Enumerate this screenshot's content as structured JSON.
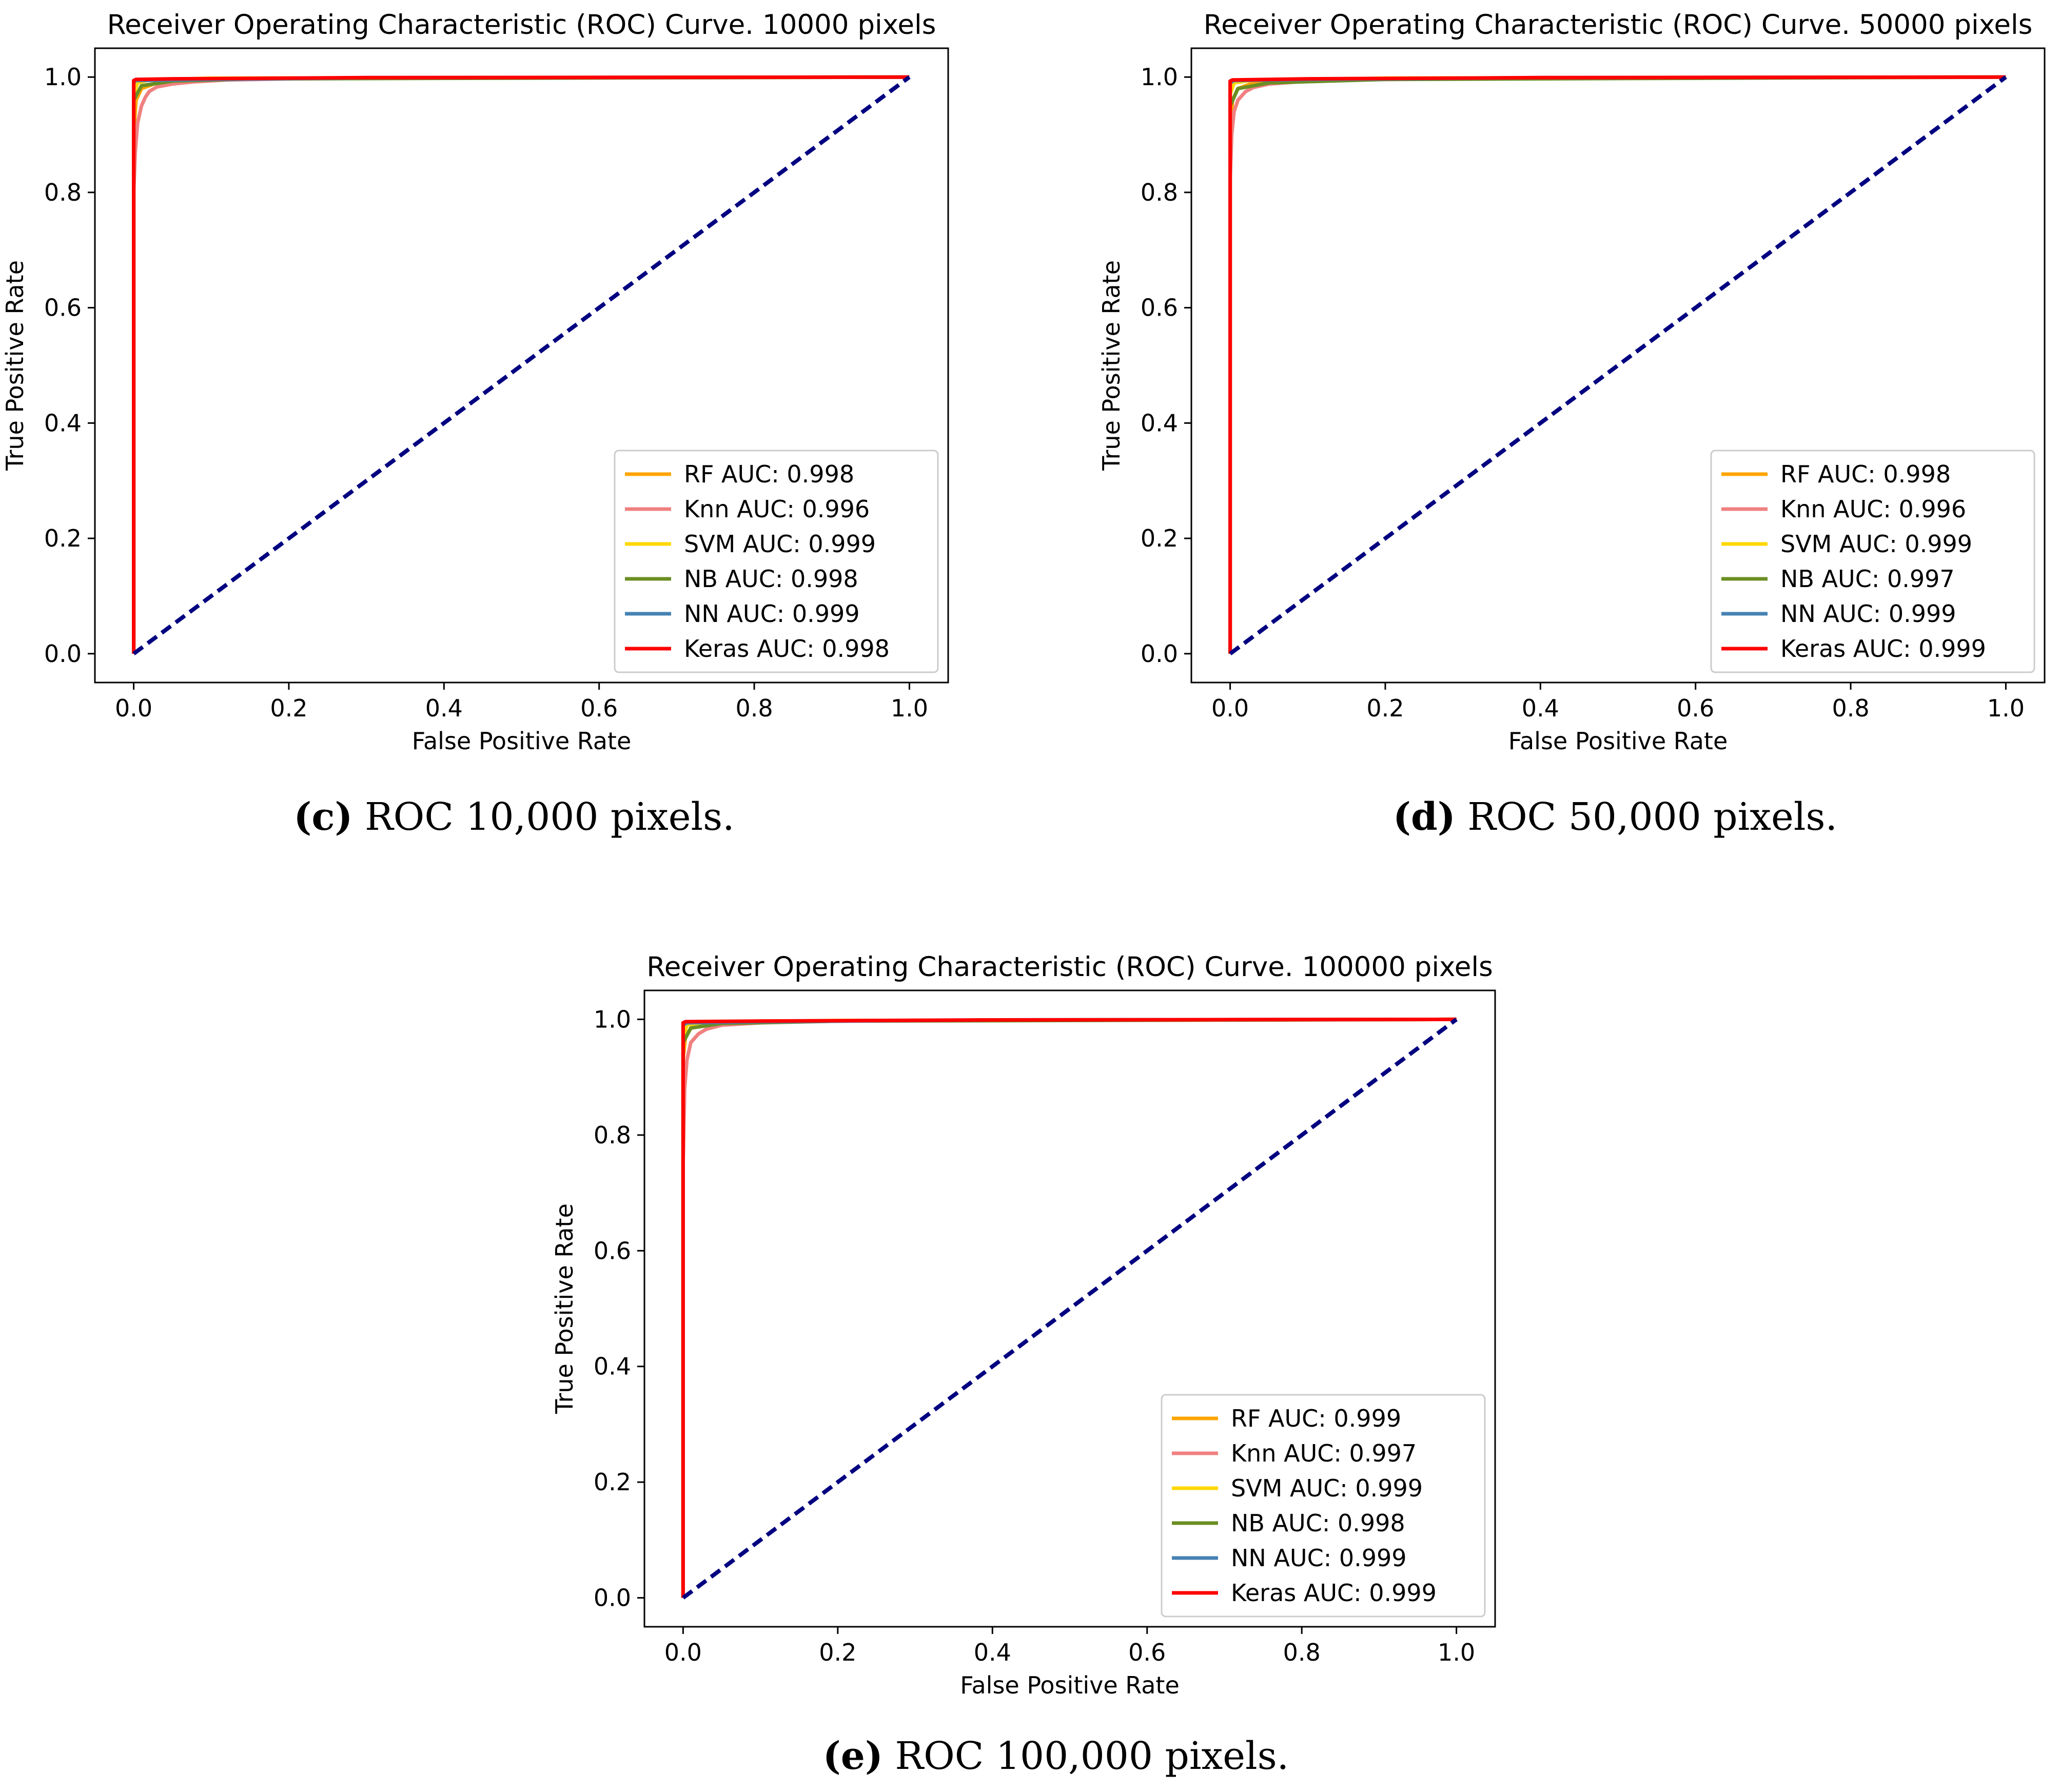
{
  "chart_data": [
    {
      "type": "line",
      "title": "Receiver Operating Characteristic (ROC) Curve. 10000 pixels",
      "xlabel": "False Positive Rate",
      "ylabel": "True Positive Rate",
      "xlim": [
        -0.05,
        1.05
      ],
      "ylim": [
        -0.05,
        1.05
      ],
      "xticks": [
        "0.0",
        "0.2",
        "0.4",
        "0.6",
        "0.8",
        "1.0"
      ],
      "yticks": [
        "0.0",
        "0.2",
        "0.4",
        "0.6",
        "0.8",
        "1.0"
      ],
      "grid": false,
      "legend_position": "lower-right",
      "caption": {
        "letter": "(c)",
        "text": " ROC 10,000 pixels."
      },
      "series": [
        {
          "name": "RF AUC: 0.998",
          "color": "#ffa500",
          "x": [
            0,
            0,
            0.003,
            0.01,
            0.03,
            0.06,
            0.1,
            0.2,
            1
          ],
          "y": [
            0,
            0.9,
            0.96,
            0.98,
            0.99,
            0.993,
            0.996,
            0.998,
            1
          ]
        },
        {
          "name": "Knn AUC: 0.996",
          "color": "#f08080",
          "x": [
            0,
            0,
            0.002,
            0.005,
            0.01,
            0.015,
            0.02,
            0.03,
            0.05,
            0.08,
            0.12,
            0.2,
            0.4,
            1
          ],
          "y": [
            0,
            0.8,
            0.87,
            0.92,
            0.95,
            0.965,
            0.975,
            0.983,
            0.988,
            0.992,
            0.995,
            0.997,
            0.999,
            1
          ]
        },
        {
          "name": "SVM AUC: 0.999",
          "color": "#ffd700",
          "x": [
            0,
            0,
            0.005,
            0.02,
            0.1,
            1
          ],
          "y": [
            0,
            0.97,
            0.99,
            0.995,
            0.998,
            1
          ]
        },
        {
          "name": "NB AUC: 0.998",
          "color": "#6b8e23",
          "x": [
            0,
            0,
            0.01,
            0.05,
            0.15,
            1
          ],
          "y": [
            0,
            0.96,
            0.985,
            0.993,
            0.997,
            1
          ]
        },
        {
          "name": "NN AUC: 0.999",
          "color": "#4682b4",
          "x": [
            0,
            0,
            0.002,
            0.1,
            0.3,
            1
          ],
          "y": [
            0,
            0.99,
            0.994,
            0.996,
            0.999,
            1
          ]
        },
        {
          "name": "Keras AUC: 0.998",
          "color": "#ff0000",
          "x": [
            0,
            0,
            0.003,
            0.05,
            0.3,
            1
          ],
          "y": [
            0,
            0.994,
            0.996,
            0.997,
            0.999,
            1
          ]
        },
        {
          "name": "",
          "color": "#000080",
          "dashed": true,
          "x": [
            0,
            1
          ],
          "y": [
            0,
            1
          ]
        }
      ]
    },
    {
      "type": "line",
      "title": "Receiver Operating Characteristic (ROC) Curve. 50000 pixels",
      "xlabel": "False Positive Rate",
      "ylabel": "True Positive Rate",
      "xlim": [
        -0.05,
        1.05
      ],
      "ylim": [
        -0.05,
        1.05
      ],
      "xticks": [
        "0.0",
        "0.2",
        "0.4",
        "0.6",
        "0.8",
        "1.0"
      ],
      "yticks": [
        "0.0",
        "0.2",
        "0.4",
        "0.6",
        "0.8",
        "1.0"
      ],
      "grid": false,
      "legend_position": "lower-right",
      "caption": {
        "letter": "(d)",
        "text": " ROC 50,000 pixels."
      },
      "series": [
        {
          "name": "RF AUC: 0.998",
          "color": "#ffa500",
          "x": [
            0,
            0,
            0.003,
            0.01,
            0.03,
            0.08,
            0.2,
            1
          ],
          "y": [
            0,
            0.9,
            0.96,
            0.98,
            0.99,
            0.994,
            0.998,
            1
          ]
        },
        {
          "name": "Knn AUC: 0.996",
          "color": "#f08080",
          "x": [
            0,
            0,
            0.002,
            0.005,
            0.01,
            0.02,
            0.03,
            0.05,
            0.1,
            0.2,
            0.5,
            1
          ],
          "y": [
            0,
            0.82,
            0.9,
            0.94,
            0.96,
            0.975,
            0.982,
            0.988,
            0.993,
            0.996,
            0.999,
            1
          ]
        },
        {
          "name": "SVM AUC: 0.999",
          "color": "#ffd700",
          "x": [
            0,
            0,
            0.005,
            0.03,
            0.2,
            1
          ],
          "y": [
            0,
            0.97,
            0.99,
            0.995,
            0.998,
            1
          ]
        },
        {
          "name": "NB AUC: 0.997",
          "color": "#6b8e23",
          "x": [
            0,
            0,
            0.01,
            0.05,
            0.2,
            1
          ],
          "y": [
            0,
            0.95,
            0.98,
            0.99,
            0.996,
            1
          ]
        },
        {
          "name": "NN AUC: 0.999",
          "color": "#4682b4",
          "x": [
            0,
            0,
            0.005,
            0.1,
            0.4,
            1
          ],
          "y": [
            0,
            0.99,
            0.994,
            0.996,
            0.999,
            1
          ]
        },
        {
          "name": "Keras AUC: 0.999",
          "color": "#ff0000",
          "x": [
            0,
            0,
            0.003,
            0.1,
            0.4,
            1
          ],
          "y": [
            0,
            0.993,
            0.995,
            0.997,
            0.999,
            1
          ]
        },
        {
          "name": "",
          "color": "#000080",
          "dashed": true,
          "x": [
            0,
            1
          ],
          "y": [
            0,
            1
          ]
        }
      ]
    },
    {
      "type": "line",
      "title": "Receiver Operating Characteristic (ROC) Curve. 100000 pixels",
      "xlabel": "False Positive Rate",
      "ylabel": "True Positive Rate",
      "xlim": [
        -0.05,
        1.05
      ],
      "ylim": [
        -0.05,
        1.05
      ],
      "xticks": [
        "0.0",
        "0.2",
        "0.4",
        "0.6",
        "0.8",
        "1.0"
      ],
      "yticks": [
        "0.0",
        "0.2",
        "0.4",
        "0.6",
        "0.8",
        "1.0"
      ],
      "grid": false,
      "legend_position": "lower-right",
      "caption": {
        "letter": "(e)",
        "text": " ROC 100,000 pixels."
      },
      "series": [
        {
          "name": "RF AUC: 0.999",
          "color": "#ffa500",
          "x": [
            0,
            0,
            0.003,
            0.01,
            0.03,
            0.1,
            1
          ],
          "y": [
            0,
            0.93,
            0.97,
            0.985,
            0.993,
            0.997,
            1
          ]
        },
        {
          "name": "Knn AUC: 0.997",
          "color": "#f08080",
          "x": [
            0,
            0,
            0.002,
            0.005,
            0.01,
            0.02,
            0.03,
            0.05,
            0.1,
            0.2,
            0.5,
            1
          ],
          "y": [
            0,
            0.75,
            0.88,
            0.93,
            0.96,
            0.975,
            0.983,
            0.99,
            0.994,
            0.997,
            0.999,
            1
          ]
        },
        {
          "name": "SVM AUC: 0.999",
          "color": "#ffd700",
          "x": [
            0,
            0,
            0.005,
            0.03,
            0.2,
            1
          ],
          "y": [
            0,
            0.97,
            0.99,
            0.995,
            0.998,
            1
          ]
        },
        {
          "name": "NB AUC: 0.998",
          "color": "#6b8e23",
          "x": [
            0,
            0,
            0.01,
            0.05,
            0.2,
            1
          ],
          "y": [
            0,
            0.96,
            0.985,
            0.993,
            0.997,
            1
          ]
        },
        {
          "name": "NN AUC: 0.999",
          "color": "#4682b4",
          "x": [
            0,
            0,
            0.005,
            0.1,
            0.4,
            1
          ],
          "y": [
            0,
            0.99,
            0.994,
            0.996,
            0.999,
            1
          ]
        },
        {
          "name": "Keras AUC: 0.999",
          "color": "#ff0000",
          "x": [
            0,
            0,
            0.003,
            0.1,
            0.4,
            1
          ],
          "y": [
            0,
            0.994,
            0.996,
            0.997,
            0.999,
            1
          ]
        },
        {
          "name": "",
          "color": "#000080",
          "dashed": true,
          "x": [
            0,
            1
          ],
          "y": [
            0,
            1
          ]
        }
      ]
    }
  ]
}
